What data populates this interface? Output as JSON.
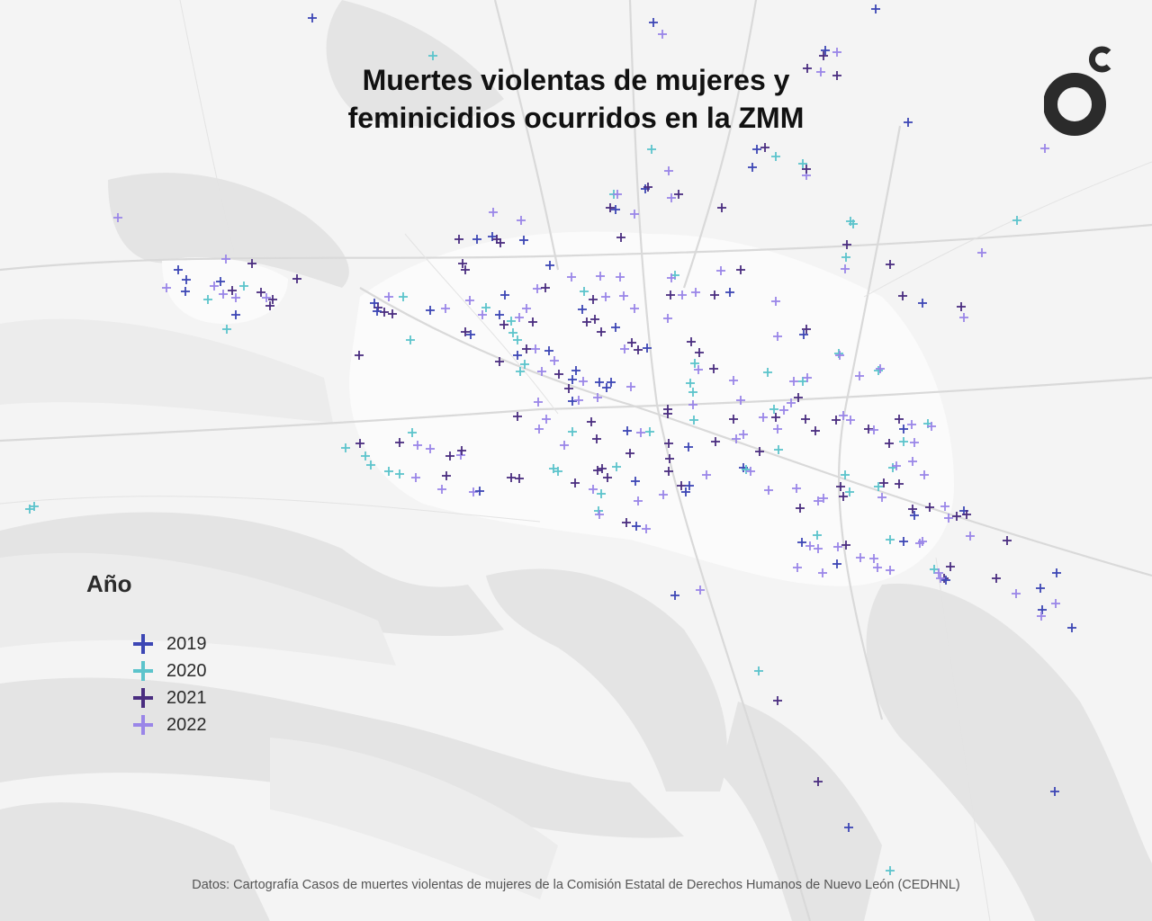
{
  "title_lines": [
    "Muertes violentas de mujeres y",
    "feminicidios ocurridos en la ZMM"
  ],
  "legend": {
    "title": "Año",
    "items": [
      {
        "year": "2019",
        "color": "#3d47b5"
      },
      {
        "year": "2020",
        "color": "#5cc4cc"
      },
      {
        "year": "2021",
        "color": "#4a2d80"
      },
      {
        "year": "2022",
        "color": "#9a86e8"
      }
    ]
  },
  "source": "Datos: Cartografía Casos de muertes violentas de mujeres de la Comisión Estatal de Derechos Humanos de Nuevo León (CEDHNL)",
  "logo": {
    "name": "brand-logo-icon",
    "color": "#2b2b2b",
    "letter": "c"
  },
  "map": {
    "base": "grayscale street map of the Monterrey metropolitan area",
    "marker_icon": "plus-icon"
  }
}
